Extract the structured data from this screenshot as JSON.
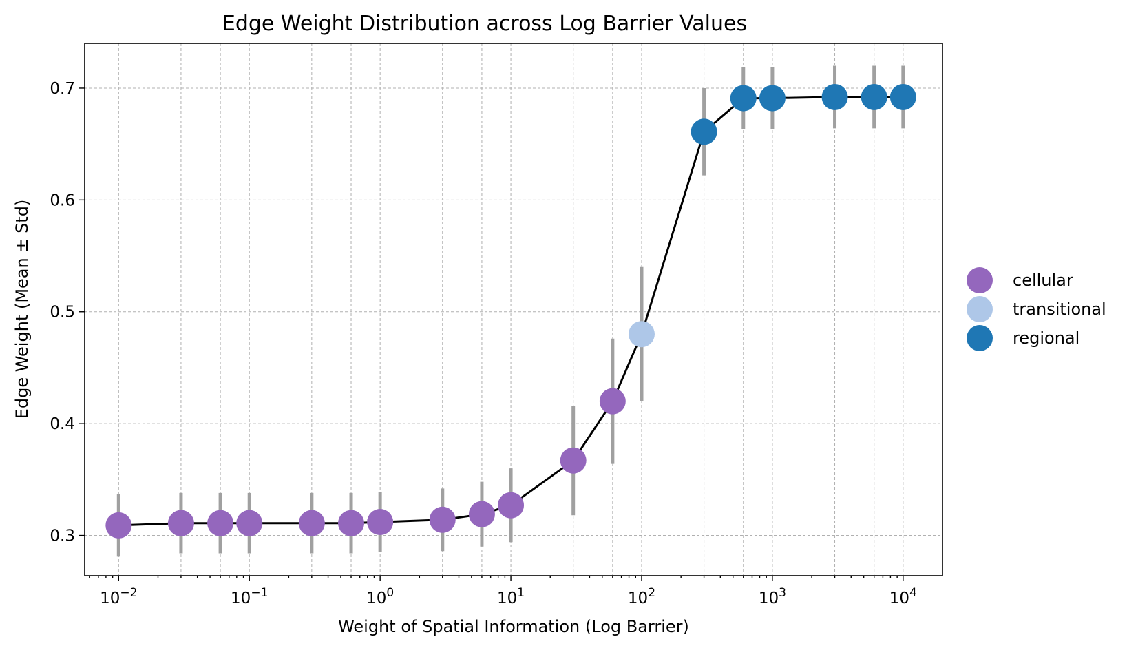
{
  "chart_data": {
    "type": "scatter",
    "title": "Edge Weight Distribution across Log Barrier Values",
    "xlabel": "Weight of Spatial Information (Log Barrier)",
    "ylabel": "Edge Weight (Mean ± Std)",
    "xscale": "log",
    "xlim": [
      0.0055,
      20000
    ],
    "ylim": [
      0.264,
      0.74
    ],
    "x_ticks": [
      {
        "value": 0.01,
        "base": "10",
        "exp": "−2"
      },
      {
        "value": 0.1,
        "base": "10",
        "exp": "−1"
      },
      {
        "value": 1,
        "base": "10",
        "exp": "0"
      },
      {
        "value": 10,
        "base": "10",
        "exp": "1"
      },
      {
        "value": 100,
        "base": "10",
        "exp": "2"
      },
      {
        "value": 1000,
        "base": "10",
        "exp": "3"
      },
      {
        "value": 10000,
        "base": "10",
        "exp": "4"
      }
    ],
    "y_ticks": [
      {
        "value": 0.3,
        "label": "0.3"
      },
      {
        "value": 0.4,
        "label": "0.4"
      },
      {
        "value": 0.5,
        "label": "0.5"
      },
      {
        "value": 0.6,
        "label": "0.6"
      },
      {
        "value": 0.7,
        "label": "0.7"
      }
    ],
    "grid": true,
    "legend_position": "right",
    "categories": [
      {
        "name": "cellular",
        "color": "#9467bd"
      },
      {
        "name": "transitional",
        "color": "#aec7e8"
      },
      {
        "name": "regional",
        "color": "#1f77b4"
      }
    ],
    "line_color": "#000000",
    "errorbar_color": "#a0a0a0",
    "points": [
      {
        "x": 0.01,
        "y": 0.309,
        "std": 0.028,
        "category": "cellular"
      },
      {
        "x": 0.03,
        "y": 0.311,
        "std": 0.027,
        "category": "cellular"
      },
      {
        "x": 0.06,
        "y": 0.311,
        "std": 0.027,
        "category": "cellular"
      },
      {
        "x": 0.1,
        "y": 0.311,
        "std": 0.027,
        "category": "cellular"
      },
      {
        "x": 0.3,
        "y": 0.311,
        "std": 0.027,
        "category": "cellular"
      },
      {
        "x": 0.6,
        "y": 0.311,
        "std": 0.027,
        "category": "cellular"
      },
      {
        "x": 1,
        "y": 0.312,
        "std": 0.027,
        "category": "cellular"
      },
      {
        "x": 3,
        "y": 0.314,
        "std": 0.028,
        "category": "cellular"
      },
      {
        "x": 6,
        "y": 0.319,
        "std": 0.029,
        "category": "cellular"
      },
      {
        "x": 10,
        "y": 0.327,
        "std": 0.033,
        "category": "cellular"
      },
      {
        "x": 30,
        "y": 0.367,
        "std": 0.049,
        "category": "cellular"
      },
      {
        "x": 60,
        "y": 0.42,
        "std": 0.056,
        "category": "cellular"
      },
      {
        "x": 100,
        "y": 0.48,
        "std": 0.06,
        "category": "transitional"
      },
      {
        "x": 300,
        "y": 0.661,
        "std": 0.039,
        "category": "regional"
      },
      {
        "x": 600,
        "y": 0.691,
        "std": 0.028,
        "category": "regional"
      },
      {
        "x": 1000,
        "y": 0.691,
        "std": 0.028,
        "category": "regional"
      },
      {
        "x": 3000,
        "y": 0.692,
        "std": 0.028,
        "category": "regional"
      },
      {
        "x": 6000,
        "y": 0.692,
        "std": 0.028,
        "category": "regional"
      },
      {
        "x": 10000,
        "y": 0.692,
        "std": 0.028,
        "category": "regional"
      }
    ]
  }
}
